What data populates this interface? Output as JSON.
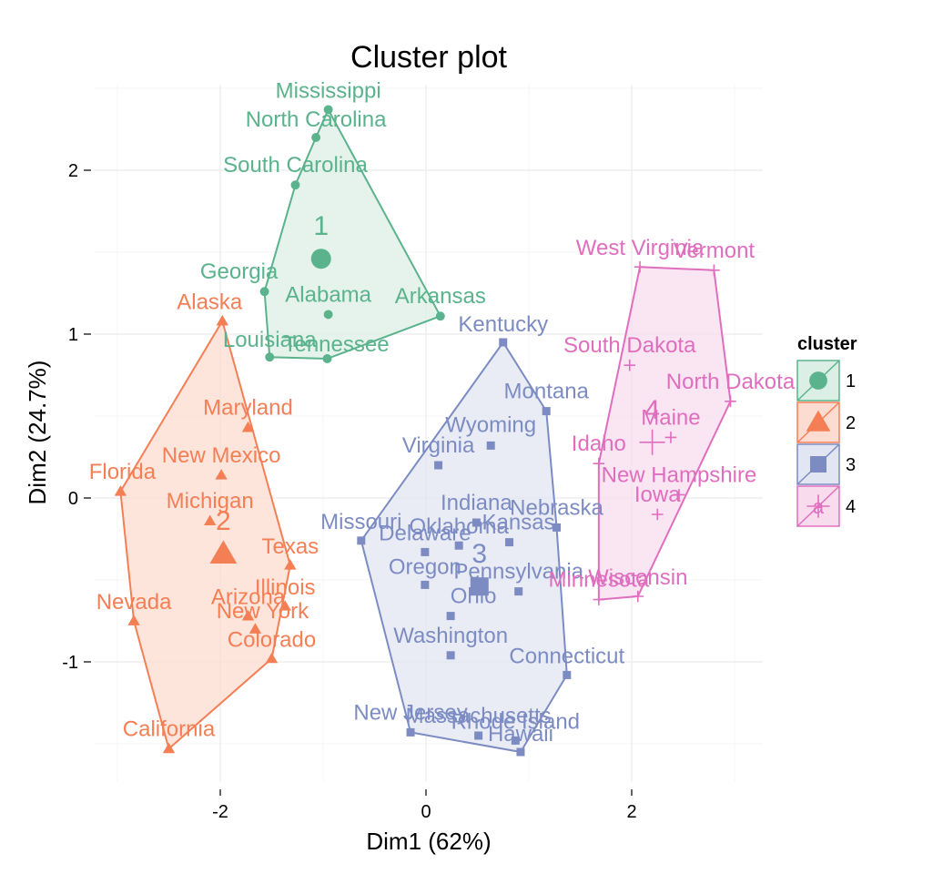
{
  "chart_data": {
    "type": "scatter",
    "title": "Cluster plot",
    "xlabel": "Dim1 (62%)",
    "ylabel": "Dim2 (24.7%)",
    "xlim": [
      -3.0,
      3.2
    ],
    "ylim": [
      -1.7,
      2.55
    ],
    "x_ticks": [
      -2,
      0,
      2
    ],
    "x_tick_labels": [
      "-2",
      "0",
      "2"
    ],
    "y_ticks": [
      -1,
      0,
      1,
      2
    ],
    "y_tick_labels": [
      "-1",
      "0",
      "1",
      "2"
    ],
    "grid": true,
    "legend": {
      "title": "cluster",
      "position": "right",
      "key_letter": "a",
      "entries": [
        {
          "label": "1",
          "cluster": 1
        },
        {
          "label": "2",
          "cluster": 2
        },
        {
          "label": "3",
          "cluster": 3
        },
        {
          "label": "4",
          "cluster": 4
        }
      ]
    },
    "clusters": [
      {
        "id": 1,
        "name": "1",
        "color": "#5AB38C",
        "fill": "#DCEFE6",
        "shape": "circle",
        "center": [
          -1.02,
          1.46
        ],
        "center_label": "1",
        "points": [
          {
            "label": "Mississippi",
            "x": -0.95,
            "y": 2.37
          },
          {
            "label": "North Carolina",
            "x": -1.07,
            "y": 2.2
          },
          {
            "label": "South Carolina",
            "x": -1.27,
            "y": 1.91
          },
          {
            "label": "Georgia",
            "x": -1.57,
            "y": 1.26
          },
          {
            "label": "Alabama",
            "x": -0.95,
            "y": 1.12
          },
          {
            "label": "Arkansas",
            "x": 0.14,
            "y": 1.11
          },
          {
            "label": "Louisiana",
            "x": -1.52,
            "y": 0.86
          },
          {
            "label": "Tennessee",
            "x": -0.96,
            "y": 0.85
          }
        ],
        "hull": [
          "Mississippi",
          "Arkansas",
          "Tennessee",
          "Louisiana",
          "Georgia",
          "South Carolina",
          "North Carolina"
        ]
      },
      {
        "id": 2,
        "name": "2",
        "color": "#F47F55",
        "fill": "#FCDCD0",
        "shape": "triangle",
        "center": [
          -1.97,
          -0.34
        ],
        "center_label": "2",
        "points": [
          {
            "label": "Alaska",
            "x": -1.98,
            "y": 1.08
          },
          {
            "label": "Maryland",
            "x": -1.73,
            "y": 0.43
          },
          {
            "label": "New Mexico",
            "x": -1.99,
            "y": 0.14
          },
          {
            "label": "Florida",
            "x": -2.97,
            "y": 0.04
          },
          {
            "label": "Michigan",
            "x": -2.1,
            "y": -0.14
          },
          {
            "label": "Texas",
            "x": -1.32,
            "y": -0.41
          },
          {
            "label": "Illinois",
            "x": -1.37,
            "y": -0.66
          },
          {
            "label": "Arizona",
            "x": -1.73,
            "y": -0.72
          },
          {
            "label": "New York",
            "x": -1.66,
            "y": -0.8
          },
          {
            "label": "Nevada",
            "x": -2.84,
            "y": -0.75
          },
          {
            "label": "Colorado",
            "x": -1.5,
            "y": -0.98
          },
          {
            "label": "California",
            "x": -2.5,
            "y": -1.53
          }
        ],
        "hull": [
          "Alaska",
          "Texas",
          "Colorado",
          "California",
          "Nevada",
          "Florida"
        ]
      },
      {
        "id": 3,
        "name": "3",
        "color": "#7C8CC3",
        "fill": "#E2E5F2",
        "shape": "square",
        "center": [
          0.52,
          -0.54
        ],
        "center_label": "3",
        "points": [
          {
            "label": "Kentucky",
            "x": 0.75,
            "y": 0.95
          },
          {
            "label": "Montana",
            "x": 1.17,
            "y": 0.53
          },
          {
            "label": "Wyoming",
            "x": 0.63,
            "y": 0.32
          },
          {
            "label": "Virginia",
            "x": 0.12,
            "y": 0.2
          },
          {
            "label": "Indiana",
            "x": 0.49,
            "y": -0.15
          },
          {
            "label": "Nebraska",
            "x": 1.27,
            "y": -0.18
          },
          {
            "label": "Kansas",
            "x": 0.81,
            "y": -0.27
          },
          {
            "label": "Missouri",
            "x": -0.63,
            "y": -0.26
          },
          {
            "label": "Oklahoma",
            "x": 0.32,
            "y": -0.29
          },
          {
            "label": "Delaware",
            "x": -0.01,
            "y": -0.33
          },
          {
            "label": "Oregon",
            "x": -0.01,
            "y": -0.53
          },
          {
            "label": "Pennsylvania",
            "x": 0.9,
            "y": -0.57
          },
          {
            "label": "Ohio",
            "x": 0.24,
            "y": -0.72
          },
          {
            "label": "Washington",
            "x": 0.24,
            "y": -0.96
          },
          {
            "label": "Connecticut",
            "x": 1.37,
            "y": -1.08
          },
          {
            "label": "New Jersey",
            "x": -0.15,
            "y": -1.43
          },
          {
            "label": "Massachusetts",
            "x": 0.51,
            "y": -1.45
          },
          {
            "label": "Rhode Island",
            "x": 0.87,
            "y": -1.48
          },
          {
            "label": "Hawaii",
            "x": 0.92,
            "y": -1.55
          }
        ],
        "hull": [
          "Kentucky",
          "Montana",
          "Nebraska",
          "Connecticut",
          "Hawaii",
          "New Jersey",
          "Missouri"
        ]
      },
      {
        "id": 4,
        "name": "4",
        "color": "#E06EBF",
        "fill": "#F8DCEE",
        "shape": "plus",
        "center": [
          2.2,
          0.34
        ],
        "center_label": "4",
        "points": [
          {
            "label": "West Virginia",
            "x": 2.08,
            "y": 1.41
          },
          {
            "label": "Vermont",
            "x": 2.8,
            "y": 1.39
          },
          {
            "label": "South Dakota",
            "x": 1.98,
            "y": 0.81
          },
          {
            "label": "North Dakota",
            "x": 2.96,
            "y": 0.59
          },
          {
            "label": "Maine",
            "x": 2.38,
            "y": 0.37
          },
          {
            "label": "Idaho",
            "x": 1.68,
            "y": 0.21
          },
          {
            "label": "New Hampshire",
            "x": 2.46,
            "y": 0.02
          },
          {
            "label": "Iowa",
            "x": 2.25,
            "y": -0.1
          },
          {
            "label": "Wisconsin",
            "x": 2.06,
            "y": -0.6
          },
          {
            "label": "Minnesota",
            "x": 1.68,
            "y": -0.62
          }
        ],
        "hull": [
          "West Virginia",
          "Vermont",
          "North Dakota",
          "Wisconsin",
          "Minnesota",
          "Idaho"
        ]
      }
    ]
  }
}
